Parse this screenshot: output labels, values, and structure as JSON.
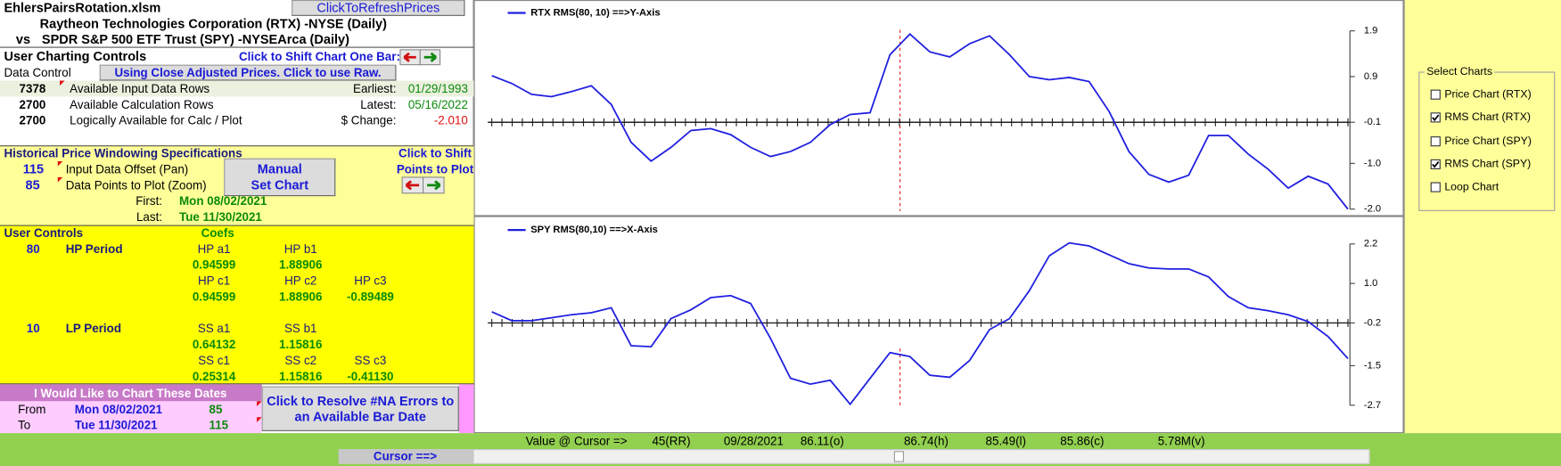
{
  "title_bar": {
    "file_name": "EhlersPairsRotation.xlsm",
    "refresh_button": "ClickToRefreshPrices"
  },
  "header": {
    "primary": "Raytheon Technologies Corporation (RTX) -NYSE  (Daily)",
    "vs": "vs",
    "secondary": "SPDR S&P 500 ETF Trust (SPY) -NYSEArca  (Daily)"
  },
  "charting_controls": {
    "title": "User Charting Controls",
    "shift_one_bar": "Click to Shift Chart One Bar:",
    "data_control": "Data Control",
    "price_button": "Using  Close Adjusted Prices. Click to use Raw."
  },
  "data_rows": [
    {
      "count": 7378,
      "label": "Available Input Data Rows",
      "key": "Earliest:",
      "value": "01/29/1993"
    },
    {
      "count": 2700,
      "label": "Available Calculation Rows",
      "key": "Latest:",
      "value": "05/16/2022"
    },
    {
      "count": 2700,
      "label": "Logically Available for Calc / Plot",
      "key": "$ Change:",
      "value": "-2.010"
    }
  ],
  "windowing": {
    "title": "Historical Price Windowing Specifications",
    "shift_points": [
      "Click to Shift",
      "Points to Plot"
    ],
    "offset": 115,
    "offset_label": "Input Data Offset (Pan)",
    "points": 85,
    "points_label": "Data Points to Plot (Zoom)",
    "button": [
      "Manual",
      "Set Chart"
    ],
    "first_label": "First:",
    "first": "Mon 08/02/2021",
    "last_label": "Last:",
    "last": "Tue 11/30/2021"
  },
  "user_controls": {
    "title": "User Controls",
    "coefs": "Coefs",
    "hp": {
      "period": 80,
      "label": "HP Period",
      "headers1": [
        "HP a1",
        "HP b1"
      ],
      "values1": [
        0.94599,
        1.88906
      ],
      "headers2": [
        "HP c1",
        "HP c2",
        "HP c3"
      ],
      "values2": [
        0.94599,
        1.88906,
        -0.89489
      ]
    },
    "lp": {
      "period": 10,
      "label": "LP Period",
      "headers1": [
        "SS a1",
        "SS b1"
      ],
      "values1": [
        0.64132,
        1.15816
      ],
      "headers2": [
        "SS c1",
        "SS c2",
        "SS c3"
      ],
      "values2": [
        0.25314,
        1.15816,
        "-0.41130"
      ]
    }
  },
  "chart_dates": {
    "title": "I Would Like to Chart These Dates",
    "rows": [
      {
        "label": "From",
        "date": "Mon 08/02/2021",
        "points": 85
      },
      {
        "label": "To",
        "date": "Tue 11/30/2021",
        "points": 115
      }
    ],
    "resolve_button": [
      "Click to Resolve #NA Errors  to",
      "an Available Bar Date"
    ]
  },
  "cursor_bar": {
    "label": "Value @ Cursor =>",
    "values": [
      "45(RR)",
      "09/28/2021",
      "86.11(o)",
      "86.74(h)",
      "85.49(l)",
      "85.86(c)",
      "5.78M(v)"
    ],
    "cursor_button": "Cursor ==>"
  },
  "select_charts": {
    "title": "Select Charts",
    "options": [
      {
        "label": "Price Chart (RTX)",
        "checked": false
      },
      {
        "label": "RMS Chart (RTX)",
        "checked": true
      },
      {
        "label": "Price Chart (SPY)",
        "checked": false
      },
      {
        "label": "RMS Chart (SPY)",
        "checked": true
      },
      {
        "label": "Loop Chart",
        "checked": false
      }
    ]
  },
  "chart_data": [
    {
      "type": "line",
      "series": [
        {
          "name": "RTX RMS(80, 10) ==>Y-Axis",
          "color": "#1f1fe0",
          "values": [
            0.92,
            0.75,
            0.51,
            0.46,
            0.57,
            0.7,
            0.29,
            -0.54,
            -0.95,
            -0.65,
            -0.28,
            -0.24,
            -0.37,
            -0.65,
            -0.85,
            -0.74,
            -0.54,
            -0.15,
            0.07,
            0.11,
            1.38,
            1.83,
            1.44,
            1.33,
            1.62,
            1.79,
            1.38,
            0.9,
            0.83,
            0.88,
            0.79,
            0.14,
            -0.74,
            -1.24,
            -1.41,
            -1.26,
            -0.39,
            -0.39,
            -0.8,
            -1.13,
            -1.54,
            -1.28,
            -1.45,
            -2.0
          ]
        }
      ],
      "ylim": [
        -2.0,
        1.9
      ],
      "yticks": [
        1.9,
        0.9,
        -0.1,
        {
          "value": -1.0,
          "label": "-1.0"
        },
        {
          "value": -2.0,
          "label": "-2.0"
        }
      ],
      "x_axis_at": -0.1
    },
    {
      "type": "line",
      "series": [
        {
          "name": "SPY RMS(80,10) ==>X-Axis",
          "color": "#1f1fe0",
          "values": [
            0.14,
            -0.13,
            -0.13,
            -0.04,
            0.05,
            0.11,
            0.26,
            -0.89,
            -0.92,
            -0.07,
            0.2,
            0.57,
            0.63,
            0.39,
            -0.67,
            -1.88,
            -2.06,
            -1.94,
            -2.67,
            -1.88,
            -1.1,
            -1.22,
            -1.79,
            -1.85,
            -1.34,
            -0.4,
            -0.07,
            0.78,
            1.84,
            2.23,
            2.14,
            1.87,
            1.6,
            1.47,
            1.44,
            1.44,
            1.2,
            0.6,
            0.26,
            0.17,
            0.05,
            -0.16,
            -0.61,
            -1.28
          ]
        }
      ],
      "ylim": [
        -2.7,
        2.2
      ],
      "yticks": [
        2.2,
        {
          "value": 1.0,
          "label": "1.0"
        },
        -0.2,
        -1.5,
        -2.7
      ],
      "x_axis_at": -0.2
    }
  ]
}
